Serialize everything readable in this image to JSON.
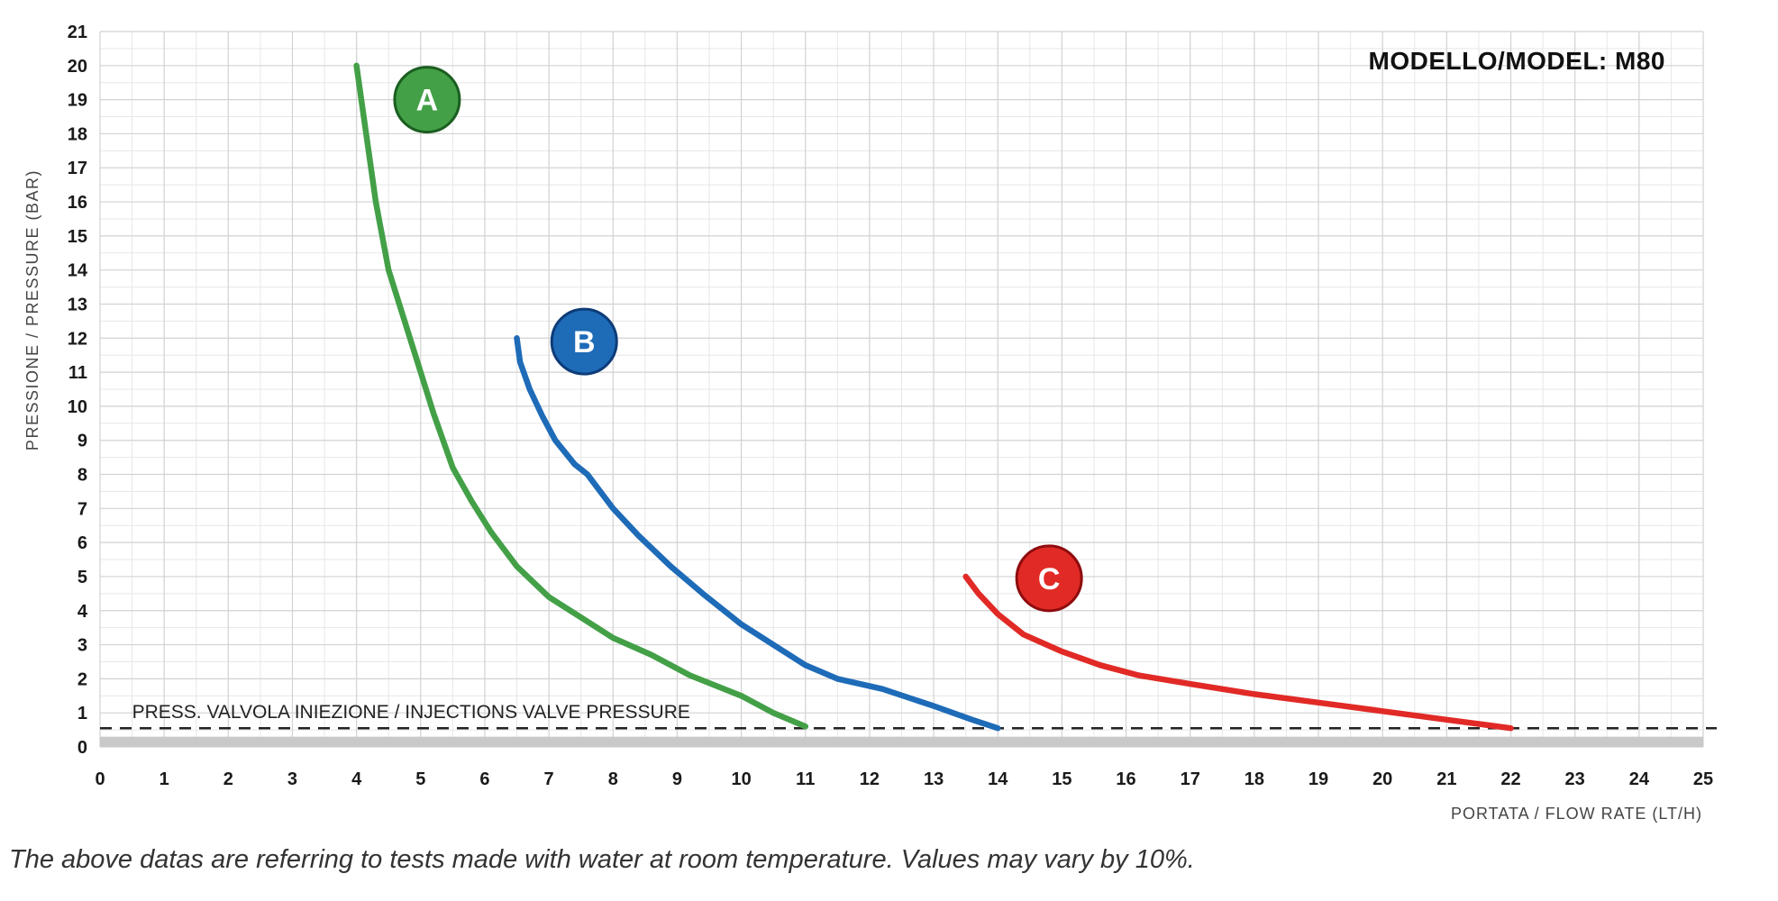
{
  "header": {
    "model_label": "MODELLO/MODEL: M80"
  },
  "footer": {
    "note": "The above datas are referring to tests made with water at room temperature. Values may vary by 10%."
  },
  "chart_data": {
    "type": "line",
    "title": "",
    "xlabel": "PORTATA / FLOW RATE (LT/H)",
    "ylabel": "PRESSIONE / PRESSURE (BAR)",
    "xlim": [
      0,
      25
    ],
    "ylim": [
      0,
      21
    ],
    "grid": true,
    "x_ticks": [
      0,
      1,
      2,
      3,
      4,
      5,
      6,
      7,
      8,
      9,
      10,
      11,
      12,
      13,
      14,
      15,
      16,
      17,
      18,
      19,
      20,
      21,
      22,
      23,
      24,
      25
    ],
    "y_ticks": [
      0,
      1,
      2,
      3,
      4,
      5,
      6,
      7,
      8,
      9,
      10,
      11,
      12,
      13,
      14,
      15,
      16,
      17,
      18,
      19,
      20,
      21
    ],
    "colors": {
      "grid_minor": "#e7e7e7",
      "grid_major": "#d2d2d2",
      "baseline_band": "#c9c9c9",
      "reference": "#222222",
      "tick_text": "#1a1a1a"
    },
    "series": [
      {
        "name": "A",
        "color": "#43a047",
        "badge_border": "#1b5e20",
        "label_pos": {
          "x": 5.1,
          "y": 19.0
        },
        "points": [
          [
            4.0,
            20.0
          ],
          [
            4.15,
            18.0
          ],
          [
            4.3,
            16.0
          ],
          [
            4.5,
            14.0
          ],
          [
            4.75,
            12.5
          ],
          [
            5.0,
            11.0
          ],
          [
            5.2,
            9.8
          ],
          [
            5.5,
            8.2
          ],
          [
            5.8,
            7.2
          ],
          [
            6.1,
            6.3
          ],
          [
            6.5,
            5.3
          ],
          [
            7.0,
            4.4
          ],
          [
            7.5,
            3.8
          ],
          [
            8.0,
            3.2
          ],
          [
            8.6,
            2.7
          ],
          [
            9.2,
            2.1
          ],
          [
            10.0,
            1.5
          ],
          [
            10.5,
            1.0
          ],
          [
            11.0,
            0.6
          ]
        ]
      },
      {
        "name": "B",
        "color": "#1e6bb8",
        "badge_border": "#0d3c78",
        "label_pos": {
          "x": 7.55,
          "y": 11.9
        },
        "points": [
          [
            6.5,
            12.0
          ],
          [
            6.55,
            11.3
          ],
          [
            6.7,
            10.5
          ],
          [
            6.9,
            9.7
          ],
          [
            7.1,
            9.0
          ],
          [
            7.4,
            8.3
          ],
          [
            7.6,
            8.0
          ],
          [
            8.0,
            7.0
          ],
          [
            8.4,
            6.2
          ],
          [
            8.9,
            5.3
          ],
          [
            9.4,
            4.5
          ],
          [
            10.0,
            3.6
          ],
          [
            10.5,
            3.0
          ],
          [
            11.0,
            2.4
          ],
          [
            11.5,
            2.0
          ],
          [
            12.2,
            1.7
          ],
          [
            13.0,
            1.2
          ],
          [
            13.6,
            0.8
          ],
          [
            14.0,
            0.55
          ]
        ]
      },
      {
        "name": "C",
        "color": "#e12a26",
        "badge_border": "#8e0c0e",
        "label_pos": {
          "x": 14.8,
          "y": 4.95
        },
        "points": [
          [
            13.5,
            5.0
          ],
          [
            13.7,
            4.5
          ],
          [
            14.0,
            3.9
          ],
          [
            14.4,
            3.3
          ],
          [
            15.0,
            2.8
          ],
          [
            15.6,
            2.4
          ],
          [
            16.2,
            2.1
          ],
          [
            17.0,
            1.85
          ],
          [
            18.0,
            1.55
          ],
          [
            19.0,
            1.3
          ],
          [
            20.0,
            1.05
          ],
          [
            21.0,
            0.8
          ],
          [
            22.0,
            0.55
          ]
        ]
      }
    ],
    "reference_line": {
      "y": 0.55,
      "style": "dashed",
      "color": "#222222",
      "label": "PRESS. VALVOLA INIEZIONE / INJECTIONS VALVE PRESSURE",
      "label_pos": {
        "x": 0.5,
        "y": 0.85
      }
    }
  }
}
